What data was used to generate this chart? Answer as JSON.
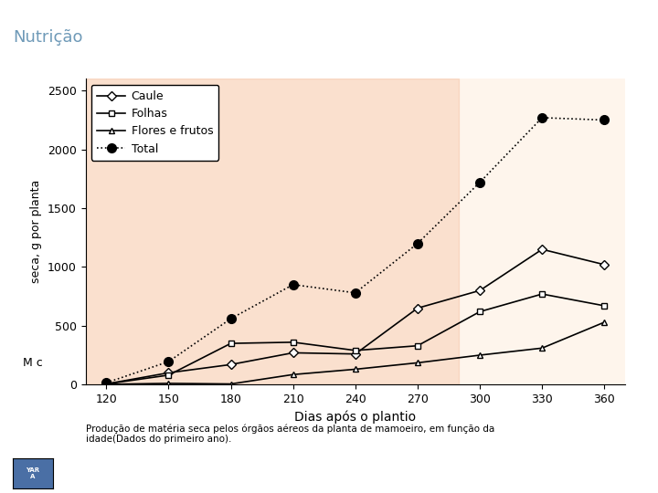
{
  "title": "Nutrição",
  "title_color": "#6f9ab8",
  "xlabel": "Dias após o plantio",
  "ylabel": "seca, g por planta",
  "ylabel_prefix": "M",
  "x": [
    120,
    150,
    180,
    210,
    240,
    270,
    300,
    330,
    360
  ],
  "caule": [
    5,
    100,
    170,
    270,
    260,
    650,
    800,
    1150,
    1020
  ],
  "folhas": [
    5,
    80,
    350,
    360,
    290,
    330,
    620,
    770,
    670
  ],
  "flores_frutos": [
    2,
    10,
    5,
    85,
    130,
    185,
    250,
    310,
    530
  ],
  "total": [
    15,
    195,
    560,
    850,
    780,
    1200,
    1720,
    2270,
    2250
  ],
  "bg_color": "#ffffff",
  "plot_bg_left_color": "#f5d9b8",
  "caption": "Produção de matéria seca pelos órgãos aéreos da planta de mamoeiro, em função da\nidade(Dados do primeiro ano).",
  "ylim": [
    0,
    2600
  ],
  "yticks": [
    0,
    500,
    1000,
    1500,
    2000,
    2500
  ],
  "xticks": [
    120,
    150,
    180,
    210,
    240,
    270,
    300,
    330,
    360
  ]
}
